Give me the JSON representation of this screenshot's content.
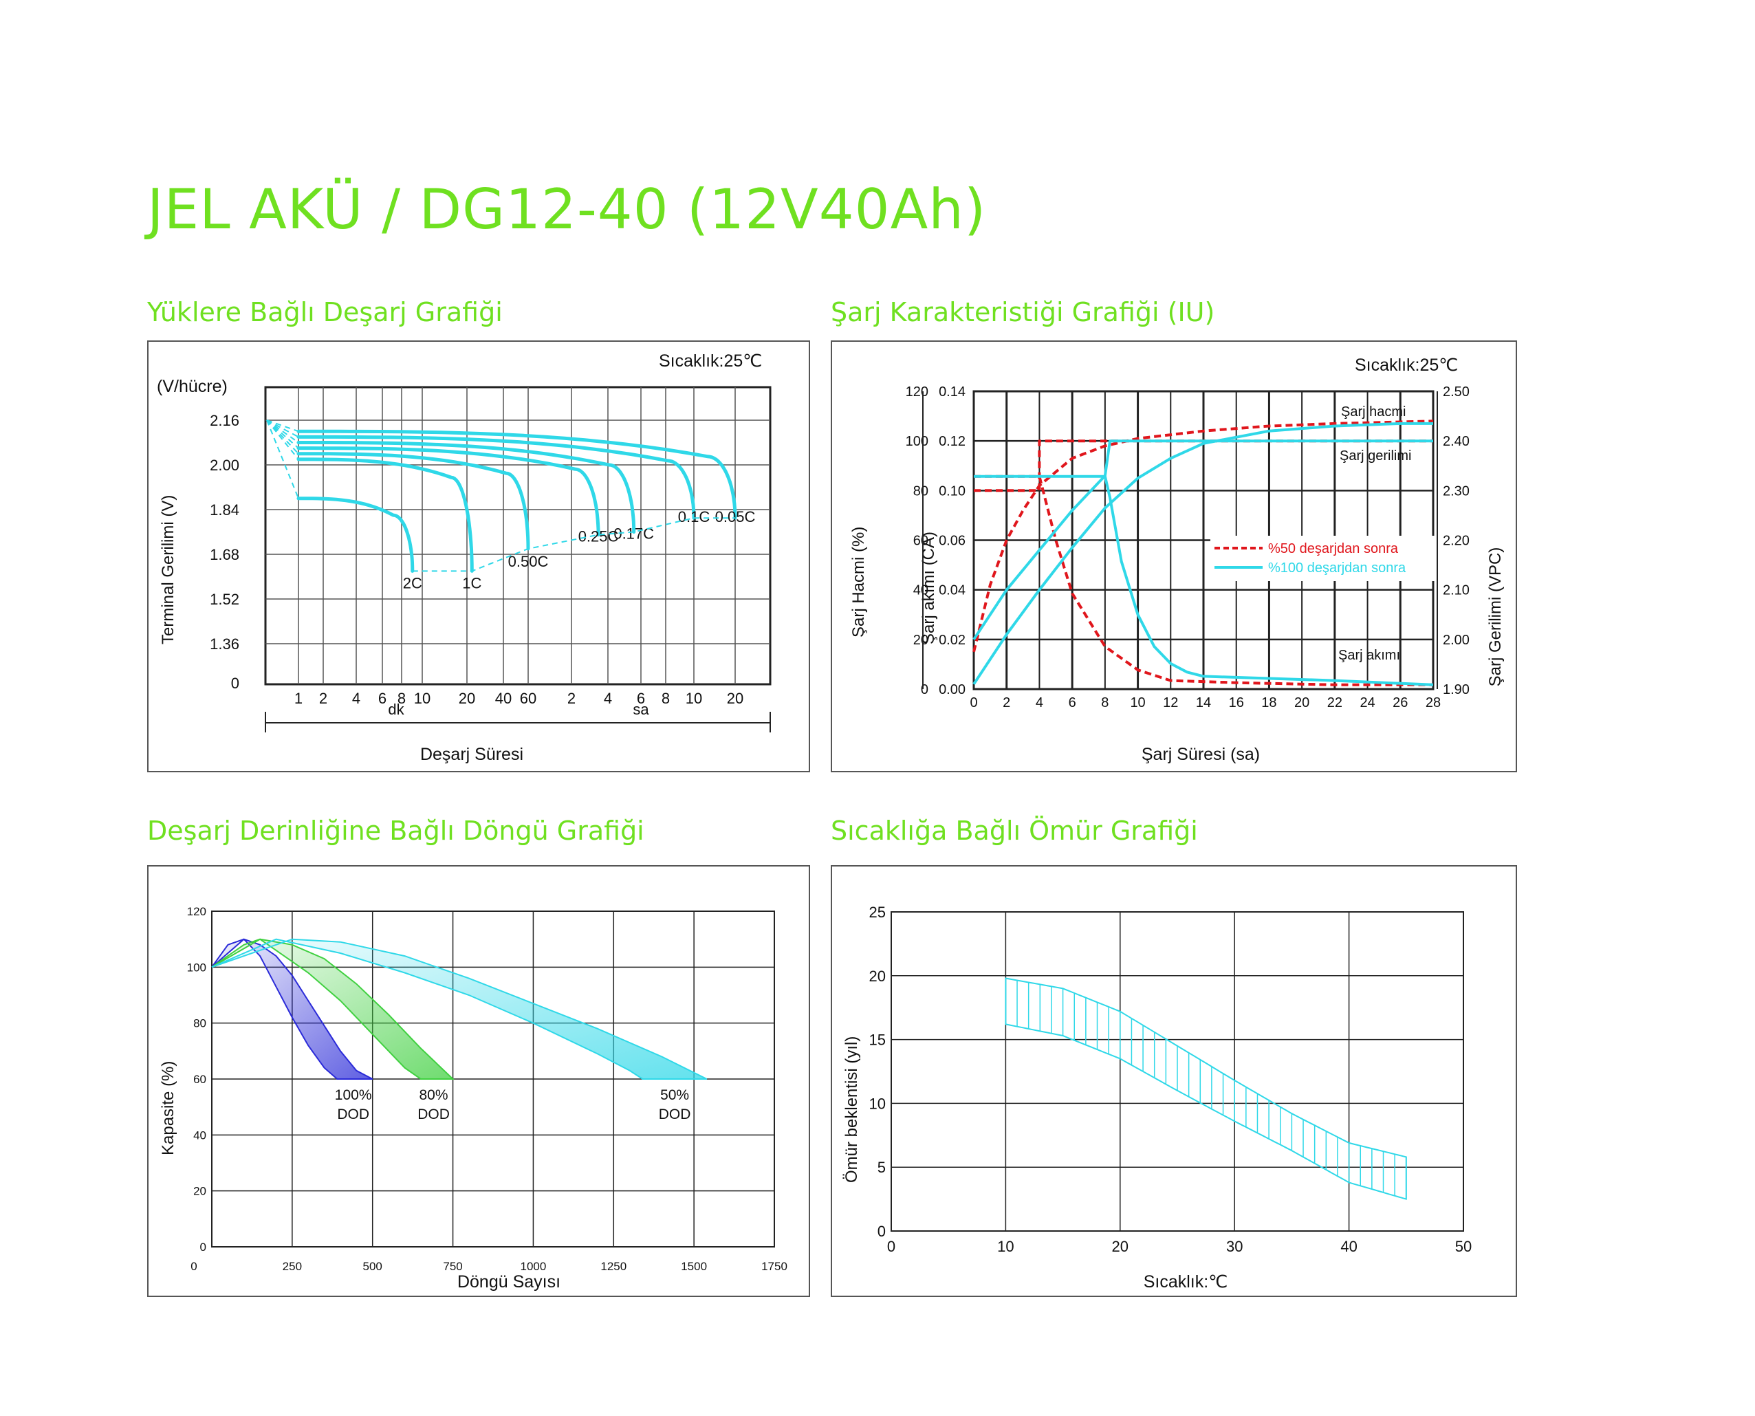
{
  "page": {
    "title": "JEL AKÜ / DG12-40 (12V40Ah)"
  },
  "colors": {
    "accent": "#6fe020",
    "cyan": "#2fd8e8",
    "red": "#e0161c",
    "blue": "#2a2ad8",
    "green": "#40d040",
    "grid": "#333333"
  },
  "chart_data": [
    {
      "type": "line",
      "section_title": "Yüklere Bağlı Deşarj Grafiği",
      "temperature_label": "Sıcaklık:25℃",
      "y_unit": "(V/hücre)",
      "ylabel": "Terminal Gerilimi (V)",
      "xlabel": "Deşarj Süresi",
      "y_ticks": [
        "2.16",
        "2.00",
        "1.84",
        "1.68",
        "1.52",
        "1.36",
        "0"
      ],
      "x_ticks": [
        "1",
        "2",
        "4",
        "6",
        "8",
        "10",
        "20",
        "40",
        "60",
        "2",
        "4",
        "6",
        "8",
        "10",
        "20"
      ],
      "x_unit_min": "dk",
      "x_unit_hour": "sa",
      "series": [
        {
          "name": "2C",
          "start_v": 1.88,
          "end_time_min": 9,
          "end_v": 1.62
        },
        {
          "name": "1C",
          "start_v": 2.02,
          "end_time_min": 22,
          "end_v": 1.62
        },
        {
          "name": "0.50C",
          "start_v": 2.04,
          "end_time_min": 60,
          "end_v": 1.7
        },
        {
          "name": "0.25C",
          "start_v": 2.06,
          "end_time_min": 200,
          "end_v": 1.75
        },
        {
          "name": "0.17C",
          "start_v": 2.08,
          "end_time_min": 330,
          "end_v": 1.76
        },
        {
          "name": "0.1C",
          "start_v": 2.1,
          "end_time_min": 600,
          "end_v": 1.81
        },
        {
          "name": "0.05C",
          "start_v": 2.12,
          "end_time_min": 1200,
          "end_v": 1.81
        }
      ]
    },
    {
      "type": "line",
      "section_title": "Şarj Karakteristiği Grafiği (IU)",
      "temperature_label": "Sıcaklık:25℃",
      "xlabel": "Şarj Süresi (sa)",
      "ylabel_left_outer": "Şarj Hacmi (%)",
      "ylabel_left_inner": "Şarj akımı (CA)",
      "ylabel_right": "Şarj Gerilimi (VPC)",
      "x_ticks": [
        "0",
        "2",
        "4",
        "6",
        "8",
        "10",
        "12",
        "14",
        "16",
        "18",
        "20",
        "22",
        "24",
        "26",
        "28"
      ],
      "y_ticks_capacity": [
        "120",
        "100",
        "80",
        "60",
        "40",
        "20",
        "0"
      ],
      "y_ticks_current": [
        "0.14",
        "0.12",
        "0.10",
        "0.06",
        "0.04",
        "0.02",
        "0.00"
      ],
      "y_ticks_voltage": [
        "2.50",
        "2.40",
        "2.30",
        "2.20",
        "2.10",
        "2.00",
        "1.90"
      ],
      "curve_labels": {
        "capacity": "Şarj hacmi",
        "voltage": "Şarj gerilimi",
        "current": "Şarj akımı"
      },
      "legend": [
        {
          "label": "%50 deşarjdan sonra",
          "color": "#e0161c",
          "style": "dashed"
        },
        {
          "label": "%100 deşarjdan sonra",
          "color": "#2fd8e8",
          "style": "solid"
        }
      ],
      "series": [
        {
          "name": "%50 deşarjdan sonra",
          "kind": "capacity",
          "x": [
            0,
            1,
            2,
            3,
            4,
            6,
            8,
            10,
            14,
            18,
            22,
            28
          ],
          "y": [
            15,
            42,
            60,
            72,
            82,
            93,
            98,
            101,
            104,
            106,
            107,
            108
          ]
        },
        {
          "name": "%50 deşarjdan sonra",
          "kind": "voltage",
          "x": [
            0,
            4,
            4,
            28
          ],
          "y": [
            2.3,
            2.3,
            2.4,
            2.4
          ]
        },
        {
          "name": "%50 deşarjdan sonra",
          "kind": "current",
          "x": [
            0,
            4,
            5,
            6,
            8,
            10,
            12,
            16,
            22,
            28
          ],
          "y": [
            0.1,
            0.1,
            0.07,
            0.045,
            0.02,
            0.009,
            0.004,
            0.003,
            0.002,
            0.002
          ]
        },
        {
          "name": "%100 deşarjdan sonra",
          "kind": "capacity",
          "x": [
            0,
            2,
            4,
            6,
            8,
            10,
            12,
            14,
            18,
            22,
            26,
            28
          ],
          "y": [
            2,
            22,
            40,
            57,
            73,
            85,
            93,
            99,
            104,
            106,
            107,
            107
          ]
        },
        {
          "name": "%100 deşarjdan sonra",
          "kind": "voltage",
          "x": [
            0,
            2,
            4,
            6,
            8,
            8.3,
            10,
            12,
            16,
            20,
            24,
            28
          ],
          "y": [
            2.0,
            2.1,
            2.18,
            2.26,
            2.33,
            2.4,
            2.4,
            2.4,
            2.4,
            2.4,
            2.4,
            2.4
          ]
        },
        {
          "name": "%100 deşarjdan sonra",
          "kind": "current",
          "x": [
            0,
            8,
            8.3,
            9,
            10,
            11,
            12,
            13,
            14,
            18,
            22,
            28
          ],
          "y": [
            0.1,
            0.1,
            0.09,
            0.06,
            0.035,
            0.02,
            0.012,
            0.008,
            0.006,
            0.005,
            0.004,
            0.002
          ]
        }
      ]
    },
    {
      "type": "line",
      "section_title": "Deşarj Derinliğine Bağlı Döngü Grafiği",
      "xlabel": "Döngü Sayısı",
      "ylabel": "Kapasite (%)",
      "x_ticks": [
        "0",
        "250",
        "500",
        "750",
        "1000",
        "1250",
        "1500",
        "1750"
      ],
      "y_ticks": [
        "120",
        "100",
        "80",
        "60",
        "40",
        "20",
        "0"
      ],
      "xlim": [
        0,
        1750
      ],
      "ylim": [
        0,
        120
      ],
      "series": [
        {
          "name": "100% DOD",
          "color": "#2a2ad8",
          "upper": {
            "x": [
              0,
              50,
              100,
              150,
              200,
              250,
              300,
              350,
              400,
              450,
              500
            ],
            "y": [
              100,
              108,
              110,
              108,
              104,
              97,
              88,
              79,
              70,
              63,
              60
            ]
          },
          "lower": {
            "x": [
              0,
              100,
              150,
              200,
              250,
              300,
              350,
              390
            ],
            "y": [
              100,
              110,
              104,
              93,
              82,
              72,
              64,
              60
            ]
          }
        },
        {
          "name": "80% DOD",
          "color": "#40d040",
          "upper": {
            "x": [
              0,
              100,
              150,
              250,
              350,
              450,
              550,
              650,
              750
            ],
            "y": [
              100,
              108,
              110,
              108,
              103,
              94,
              83,
              71,
              60
            ]
          },
          "lower": {
            "x": [
              0,
              150,
              200,
              300,
              400,
              500,
              600,
              650
            ],
            "y": [
              100,
              110,
              106,
              98,
              88,
              76,
              64,
              60
            ]
          }
        },
        {
          "name": "50% DOD",
          "color": "#2fd8e8",
          "upper": {
            "x": [
              0,
              250,
              400,
              600,
              800,
              1000,
              1200,
              1400,
              1540
            ],
            "y": [
              100,
              110,
              109,
              104,
              96,
              87,
              78,
              68,
              60
            ]
          },
          "lower": {
            "x": [
              0,
              200,
              400,
              600,
              800,
              1000,
              1200,
              1300,
              1340
            ],
            "y": [
              100,
              110,
              105,
              98,
              90,
              80,
              69,
              63,
              60
            ]
          }
        }
      ],
      "labels": [
        {
          "text": [
            "100%",
            "DOD"
          ],
          "x": 440
        },
        {
          "text": [
            "80%",
            "DOD"
          ],
          "x": 690
        },
        {
          "text": [
            "50%",
            "DOD"
          ],
          "x": 1440
        }
      ]
    },
    {
      "type": "area",
      "section_title": "Sıcaklığa Bağlı Ömür Grafiği",
      "xlabel": "Sıcaklık:℃",
      "ylabel": "Ömür beklentisi (yıl)",
      "x_ticks": [
        "0",
        "10",
        "20",
        "30",
        "40",
        "50"
      ],
      "y_ticks": [
        "25",
        "20",
        "15",
        "10",
        "5",
        "0"
      ],
      "xlim": [
        0,
        50
      ],
      "ylim": [
        0,
        25
      ],
      "band": {
        "x": [
          10,
          15,
          20,
          25,
          30,
          35,
          40,
          45
        ],
        "upper": [
          19.8,
          19.0,
          17.2,
          14.5,
          11.8,
          9.2,
          6.9,
          5.8
        ],
        "lower": [
          16.2,
          15.3,
          13.5,
          11.0,
          8.6,
          6.3,
          3.8,
          2.5
        ]
      },
      "color": "#2fd8e8"
    }
  ]
}
